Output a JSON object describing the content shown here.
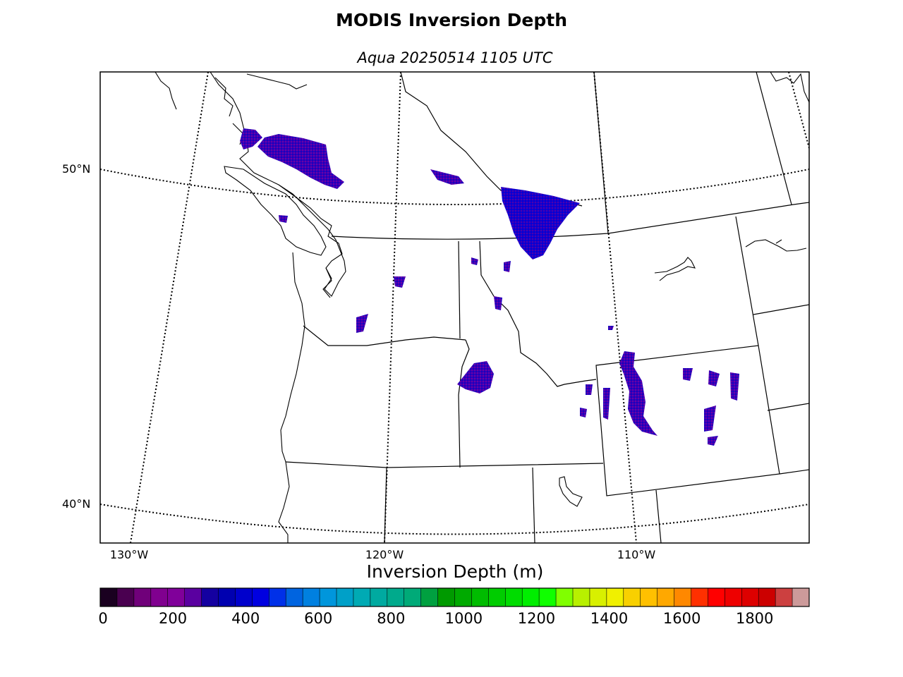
{
  "title": "MODIS Inversion Depth",
  "subtitle": "Aqua 20250514 1105 UTC",
  "lat_labels": [
    "50°N",
    "40°N"
  ],
  "lon_labels": [
    "130°W",
    "120°W",
    "110°W"
  ],
  "colorbar": {
    "title": "Inversion Depth (m)",
    "ticks": [
      "0",
      "200",
      "400",
      "600",
      "800",
      "1000",
      "1200",
      "1400",
      "1600",
      "1800"
    ],
    "range": [
      0,
      1950
    ],
    "step": 50,
    "colors": [
      "#1a0020",
      "#4a0050",
      "#70007a",
      "#80008f",
      "#80009a",
      "#5a00a0",
      "#1400a0",
      "#0000b0",
      "#0000cc",
      "#0000e0",
      "#0030e8",
      "#0064e0",
      "#0080e0",
      "#0096dc",
      "#00a0c8",
      "#00aab4",
      "#00aaa0",
      "#00aa8c",
      "#00aa78",
      "#00a040",
      "#009a00",
      "#00aa00",
      "#00bc00",
      "#00cc00",
      "#00dc00",
      "#00ee00",
      "#10ff00",
      "#80ff00",
      "#b8f000",
      "#d8f000",
      "#f0f000",
      "#f8d000",
      "#ffc000",
      "#ffa800",
      "#ff8800",
      "#ff3000",
      "#ff0000",
      "#ee0000",
      "#dd0000",
      "#cc0000",
      "#cc4040",
      "#cc9a9a"
    ]
  }
}
